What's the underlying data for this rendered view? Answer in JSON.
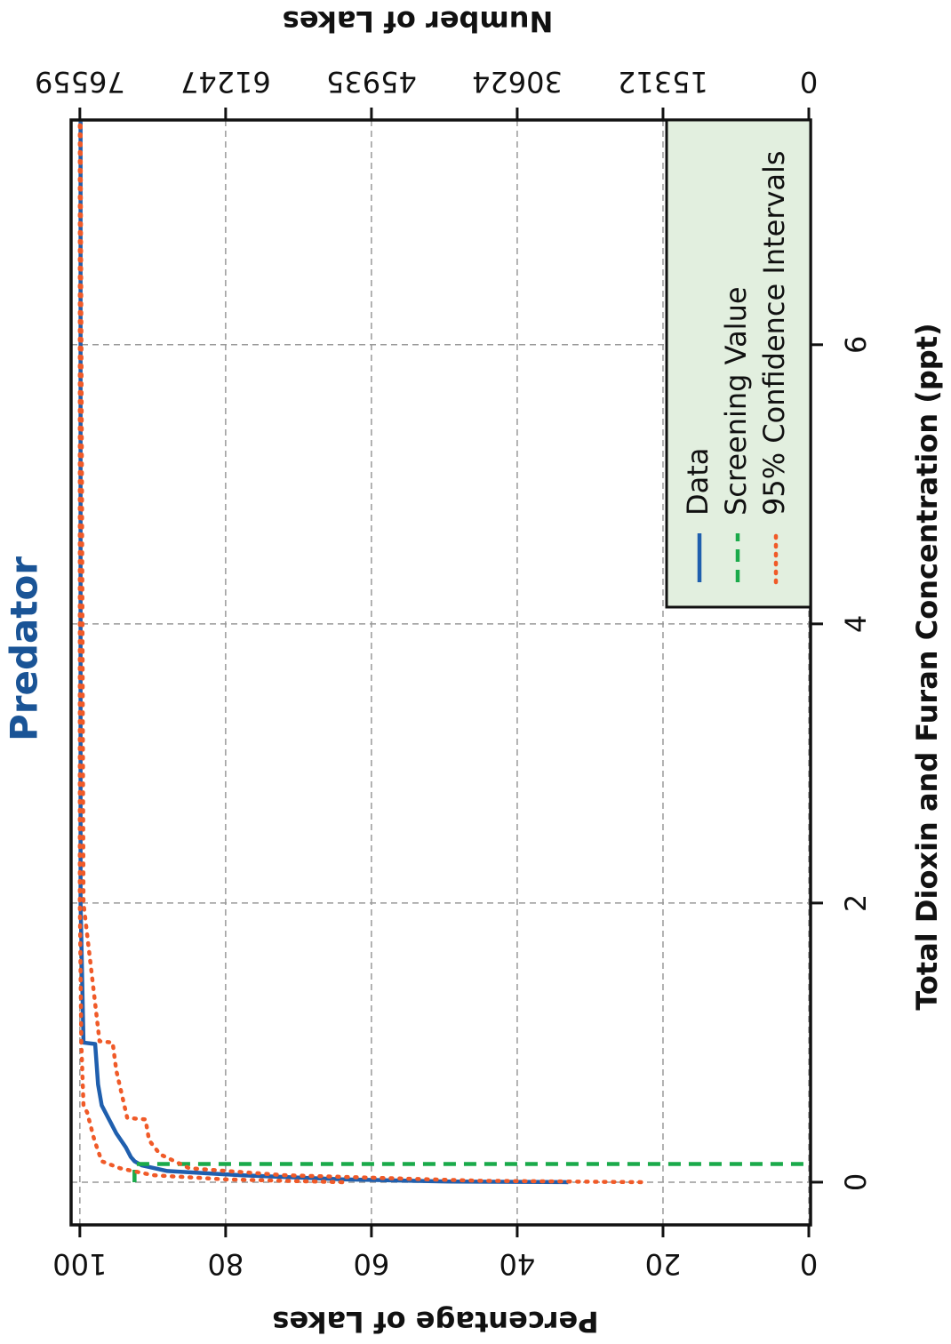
{
  "chart_data": {
    "type": "line",
    "title": "Predator",
    "x_label": "Total Dioxin and Furan Concentration (ppt)",
    "y_label": "Percentage of Lakes",
    "y2_label": "Number of Lakes",
    "xlim": [
      -0.306,
      7.61
    ],
    "ylim": [
      0,
      101.2
    ],
    "y2lim": [
      0,
      77478
    ],
    "xticks": [
      0,
      2,
      4,
      6
    ],
    "yticks": [
      0,
      20,
      40,
      60,
      80,
      100
    ],
    "y2ticks": [
      0,
      15312,
      30624,
      45935,
      61247,
      76559
    ],
    "grid": true,
    "legend": "lower right",
    "series": [
      {
        "name": "Data",
        "color": "#1f5fae",
        "style": "solid",
        "x": [
          0,
          0.005,
          0.02,
          0.05,
          0.08,
          0.12,
          0.15,
          0.18,
          0.25,
          0.35,
          0.45,
          0.55,
          0.7,
          0.99,
          1.0,
          1.5,
          2.0,
          7.6
        ],
        "values": [
          33,
          50,
          64,
          78,
          88,
          91.5,
          92.5,
          93,
          93.7,
          95,
          96,
          97,
          97.5,
          97.9,
          99.5,
          99.7,
          99.9,
          99.9
        ]
      },
      {
        "name": "Screening Value",
        "color": "#1aaa4a",
        "style": "dashed",
        "x": [
          0,
          0.13,
          0.13
        ],
        "values": [
          92.5,
          92.5,
          0
        ]
      },
      {
        "name": "95% Confidence Intervals",
        "color": "#f05a28",
        "style": "dotted",
        "x": [
          0,
          0.02,
          0.05,
          0.1,
          0.15,
          0.3,
          0.5,
          0.55,
          1.0,
          2.0,
          7.6
        ],
        "values": [
          64,
          80,
          90,
          94.5,
          97,
          98,
          99,
          99.5,
          99.8,
          100,
          100
        ]
      },
      {
        "color": "#f05a28",
        "style": "dotted",
        "x": [
          0,
          0.01,
          0.05,
          0.1,
          0.2,
          0.3,
          0.45,
          0.46,
          0.8,
          1.0,
          1.01,
          2.0,
          7.6
        ],
        "values": [
          23,
          45,
          72,
          85,
          89,
          90.5,
          91,
          93.5,
          95,
          95.5,
          97.3,
          99.5,
          99.9
        ]
      }
    ]
  }
}
